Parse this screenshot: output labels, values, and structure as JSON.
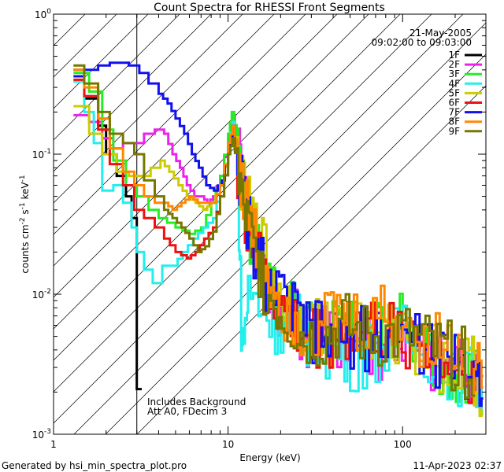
{
  "chart_data": {
    "type": "line",
    "title": "Count Spectra for RHESSI Front Segments",
    "xlabel": "Energy (keV)",
    "ylabel_base": "counts cm",
    "ylabel_sup1": "-2",
    "ylabel_mid1": " s",
    "ylabel_sup2": "-1",
    "ylabel_mid2": " keV",
    "ylabel_sup3": "-1",
    "x_scale": "log",
    "y_scale": "log",
    "xlim": [
      1,
      300
    ],
    "ylim": [
      0.001,
      1
    ],
    "x_ticks": [
      {
        "value": 1,
        "label": "1"
      },
      {
        "value": 10,
        "label": "10"
      },
      {
        "value": 100,
        "label": "100"
      }
    ],
    "y_ticks": [
      {
        "value": 1,
        "base": "10",
        "exp": "0"
      },
      {
        "value": 0.1,
        "base": "10",
        "exp": "-1"
      },
      {
        "value": 0.01,
        "base": "10",
        "exp": "-2"
      },
      {
        "value": 0.001,
        "base": "10",
        "exp": "-3"
      }
    ],
    "date": "21-May-2005",
    "time_range": "09:02:00 to 09:03:00",
    "note_line1": "Includes Background",
    "note_line2": "Att A0, FDecim 3",
    "attenuated_region_max_keV": 3,
    "legend_position": "top-right",
    "series": [
      {
        "name": "1F",
        "color": "#000000",
        "values": [
          [
            1.3,
            0.4
          ],
          [
            1.5,
            0.25
          ],
          [
            1.8,
            0.16
          ],
          [
            2.0,
            0.1
          ],
          [
            2.3,
            0.07
          ],
          [
            2.6,
            0.05
          ],
          [
            2.8,
            0.035
          ],
          [
            3.0,
            0.02
          ],
          [
            3.0,
            0.0021
          ],
          [
            3.2,
            0.0021
          ]
        ]
      },
      {
        "name": "2F",
        "color": "#ee22ee",
        "values": [
          [
            1.3,
            0.19
          ],
          [
            1.6,
            0.17
          ],
          [
            1.9,
            0.13
          ],
          [
            2.2,
            0.11
          ],
          [
            2.5,
            0.12
          ],
          [
            2.9,
            0.12
          ],
          [
            3.3,
            0.14
          ],
          [
            3.8,
            0.15
          ],
          [
            4.3,
            0.14
          ],
          [
            4.8,
            0.1
          ],
          [
            5.3,
            0.08
          ],
          [
            5.8,
            0.06
          ],
          [
            6.4,
            0.05
          ],
          [
            7.0,
            0.05
          ],
          [
            7.6,
            0.045
          ],
          [
            8.2,
            0.05
          ],
          [
            9.0,
            0.07
          ],
          [
            10.0,
            0.13
          ],
          [
            10.6,
            0.19
          ],
          [
            11.3,
            0.12
          ],
          [
            12.5,
            0.05
          ],
          [
            14,
            0.025
          ],
          [
            16,
            0.015
          ],
          [
            20,
            0.008
          ],
          [
            25,
            0.006
          ],
          [
            30,
            0.005
          ],
          [
            40,
            0.005
          ],
          [
            55,
            0.005
          ],
          [
            70,
            0.004
          ],
          [
            90,
            0.005
          ],
          [
            120,
            0.004
          ],
          [
            160,
            0.003
          ],
          [
            200,
            0.003
          ],
          [
            250,
            0.0025
          ],
          [
            290,
            0.0025
          ]
        ]
      },
      {
        "name": "3F",
        "color": "#22ee22",
        "values": [
          [
            1.3,
            0.38
          ],
          [
            1.6,
            0.28
          ],
          [
            1.9,
            0.15
          ],
          [
            2.2,
            0.09
          ],
          [
            2.6,
            0.06
          ],
          [
            3.0,
            0.05
          ],
          [
            3.5,
            0.04
          ],
          [
            4,
            0.035
          ],
          [
            5,
            0.03
          ],
          [
            6,
            0.027
          ],
          [
            7,
            0.03
          ],
          [
            8,
            0.045
          ],
          [
            9,
            0.07
          ],
          [
            10,
            0.14
          ],
          [
            10.5,
            0.2
          ],
          [
            11.2,
            0.13
          ],
          [
            12,
            0.06
          ],
          [
            13,
            0.03
          ],
          [
            15,
            0.02
          ],
          [
            18,
            0.01
          ],
          [
            22,
            0.008
          ],
          [
            28,
            0.006
          ],
          [
            35,
            0.005
          ],
          [
            45,
            0.006
          ],
          [
            60,
            0.005
          ],
          [
            80,
            0.006
          ],
          [
            100,
            0.006
          ],
          [
            130,
            0.004
          ],
          [
            170,
            0.003
          ],
          [
            220,
            0.003
          ],
          [
            280,
            0.0025
          ]
        ]
      },
      {
        "name": "4F",
        "color": "#22eeee",
        "values": [
          [
            1.3,
            0.33
          ],
          [
            1.5,
            0.2
          ],
          [
            1.7,
            0.12
          ],
          [
            1.9,
            0.055
          ],
          [
            2.2,
            0.06
          ],
          [
            2.5,
            0.045
          ],
          [
            2.8,
            0.03
          ],
          [
            3.0,
            0.02
          ],
          [
            3.3,
            0.015
          ],
          [
            3.7,
            0.012
          ],
          [
            4.2,
            0.016
          ],
          [
            4.8,
            0.016
          ],
          [
            5.5,
            0.02
          ],
          [
            6.3,
            0.025
          ],
          [
            7.2,
            0.03
          ],
          [
            8.2,
            0.035
          ],
          [
            9,
            0.06
          ],
          [
            10,
            0.12
          ],
          [
            10.6,
            0.17
          ],
          [
            11.3,
            0.1
          ],
          [
            12,
            0.004
          ],
          [
            13,
            0.01
          ],
          [
            16,
            0.008
          ],
          [
            20,
            0.006
          ],
          [
            25,
            0.006
          ],
          [
            30,
            0.005
          ],
          [
            40,
            0.004
          ],
          [
            50,
            0.0035
          ],
          [
            70,
            0.004
          ],
          [
            100,
            0.005
          ],
          [
            140,
            0.004
          ],
          [
            190,
            0.003
          ],
          [
            250,
            0.0025
          ],
          [
            290,
            0.002
          ]
        ]
      },
      {
        "name": "5F",
        "color": "#cccc00",
        "values": [
          [
            1.3,
            0.22
          ],
          [
            1.6,
            0.14
          ],
          [
            1.9,
            0.1
          ],
          [
            2.3,
            0.075
          ],
          [
            2.7,
            0.07
          ],
          [
            3.1,
            0.07
          ],
          [
            3.6,
            0.08
          ],
          [
            4.1,
            0.09
          ],
          [
            4.6,
            0.075
          ],
          [
            5.2,
            0.06
          ],
          [
            5.8,
            0.05
          ],
          [
            6.5,
            0.045
          ],
          [
            7.2,
            0.04
          ],
          [
            8.0,
            0.045
          ],
          [
            9.0,
            0.06
          ],
          [
            10,
            0.11
          ],
          [
            10.6,
            0.15
          ],
          [
            11.3,
            0.09
          ],
          [
            12.2,
            0.05
          ],
          [
            14,
            0.03
          ],
          [
            16,
            0.02
          ],
          [
            20,
            0.01
          ],
          [
            25,
            0.007
          ],
          [
            32,
            0.006
          ],
          [
            40,
            0.005
          ],
          [
            55,
            0.006
          ],
          [
            75,
            0.005
          ],
          [
            100,
            0.005
          ],
          [
            140,
            0.004
          ],
          [
            190,
            0.003
          ],
          [
            250,
            0.003
          ],
          [
            290,
            0.002
          ]
        ]
      },
      {
        "name": "6F",
        "color": "#ee1111",
        "values": [
          [
            1.3,
            0.34
          ],
          [
            1.5,
            0.26
          ],
          [
            1.8,
            0.15
          ],
          [
            2.1,
            0.085
          ],
          [
            2.5,
            0.06
          ],
          [
            2.9,
            0.04
          ],
          [
            3.3,
            0.035
          ],
          [
            3.8,
            0.03
          ],
          [
            4.3,
            0.025
          ],
          [
            5,
            0.02
          ],
          [
            5.8,
            0.018
          ],
          [
            6.5,
            0.02
          ],
          [
            7.3,
            0.025
          ],
          [
            8.2,
            0.03
          ],
          [
            9.0,
            0.05
          ],
          [
            10,
            0.1
          ],
          [
            10.6,
            0.14
          ],
          [
            11.3,
            0.08
          ],
          [
            12.2,
            0.04
          ],
          [
            14,
            0.02
          ],
          [
            17,
            0.01
          ],
          [
            21,
            0.007
          ],
          [
            27,
            0.005
          ],
          [
            35,
            0.005
          ],
          [
            45,
            0.005
          ],
          [
            60,
            0.006
          ],
          [
            80,
            0.005
          ],
          [
            110,
            0.005
          ],
          [
            150,
            0.004
          ],
          [
            200,
            0.003
          ],
          [
            260,
            0.003
          ]
        ]
      },
      {
        "name": "7F",
        "color": "#1111ee",
        "values": [
          [
            1.3,
            0.36
          ],
          [
            1.5,
            0.4
          ],
          [
            1.8,
            0.43
          ],
          [
            2.1,
            0.45
          ],
          [
            2.4,
            0.45
          ],
          [
            2.7,
            0.43
          ],
          [
            3.1,
            0.38
          ],
          [
            3.5,
            0.32
          ],
          [
            4.0,
            0.27
          ],
          [
            4.5,
            0.23
          ],
          [
            5.0,
            0.18
          ],
          [
            5.6,
            0.14
          ],
          [
            6.2,
            0.1
          ],
          [
            6.8,
            0.08
          ],
          [
            7.5,
            0.06
          ],
          [
            8.3,
            0.055
          ],
          [
            9.2,
            0.065
          ],
          [
            10,
            0.11
          ],
          [
            10.6,
            0.16
          ],
          [
            11.3,
            0.09
          ],
          [
            12.2,
            0.05
          ],
          [
            14,
            0.02
          ],
          [
            17,
            0.012
          ],
          [
            21,
            0.008
          ],
          [
            26,
            0.006
          ],
          [
            33,
            0.005
          ],
          [
            42,
            0.005
          ],
          [
            55,
            0.005
          ],
          [
            75,
            0.005
          ],
          [
            100,
            0.005
          ],
          [
            140,
            0.004
          ],
          [
            190,
            0.003
          ],
          [
            250,
            0.0028
          ],
          [
            290,
            0.0025
          ]
        ]
      },
      {
        "name": "8F",
        "color": "#ff8800",
        "values": [
          [
            1.3,
            0.4
          ],
          [
            1.5,
            0.3
          ],
          [
            1.8,
            0.18
          ],
          [
            2.1,
            0.11
          ],
          [
            2.5,
            0.075
          ],
          [
            2.9,
            0.06
          ],
          [
            3.3,
            0.05
          ],
          [
            3.8,
            0.045
          ],
          [
            4.3,
            0.045
          ],
          [
            4.8,
            0.04
          ],
          [
            5.4,
            0.045
          ],
          [
            6.0,
            0.05
          ],
          [
            6.7,
            0.045
          ],
          [
            7.4,
            0.045
          ],
          [
            8.2,
            0.045
          ],
          [
            9.0,
            0.06
          ],
          [
            10,
            0.12
          ],
          [
            10.6,
            0.16
          ],
          [
            11.3,
            0.1
          ],
          [
            12.2,
            0.05
          ],
          [
            14,
            0.025
          ],
          [
            17,
            0.013
          ],
          [
            21,
            0.008
          ],
          [
            26,
            0.006
          ],
          [
            33,
            0.006
          ],
          [
            42,
            0.007
          ],
          [
            55,
            0.006
          ],
          [
            75,
            0.007
          ],
          [
            100,
            0.006
          ],
          [
            140,
            0.005
          ],
          [
            190,
            0.004
          ],
          [
            250,
            0.003
          ],
          [
            290,
            0.003
          ]
        ]
      },
      {
        "name": "9F",
        "color": "#777700",
        "values": [
          [
            1.3,
            0.43
          ],
          [
            1.5,
            0.32
          ],
          [
            1.8,
            0.2
          ],
          [
            2.1,
            0.14
          ],
          [
            2.5,
            0.12
          ],
          [
            2.9,
            0.1
          ],
          [
            3.3,
            0.065
          ],
          [
            3.8,
            0.05
          ],
          [
            4.3,
            0.04
          ],
          [
            4.8,
            0.035
          ],
          [
            5.4,
            0.03
          ],
          [
            6.0,
            0.025
          ],
          [
            6.7,
            0.02
          ],
          [
            7.4,
            0.022
          ],
          [
            8.2,
            0.028
          ],
          [
            9.0,
            0.05
          ],
          [
            10,
            0.1
          ],
          [
            10.6,
            0.13
          ],
          [
            11.3,
            0.08
          ],
          [
            12.2,
            0.04
          ],
          [
            14,
            0.02
          ],
          [
            17,
            0.01
          ],
          [
            21,
            0.007
          ],
          [
            27,
            0.005
          ],
          [
            35,
            0.005
          ],
          [
            45,
            0.006
          ],
          [
            60,
            0.005
          ],
          [
            80,
            0.005
          ],
          [
            110,
            0.005
          ],
          [
            150,
            0.004
          ],
          [
            200,
            0.0035
          ],
          [
            260,
            0.003
          ]
        ]
      }
    ]
  },
  "footer": {
    "generated_by": "Generated by hsi_min_spectra_plot.pro",
    "timestamp": "11-Apr-2023 02:37"
  }
}
